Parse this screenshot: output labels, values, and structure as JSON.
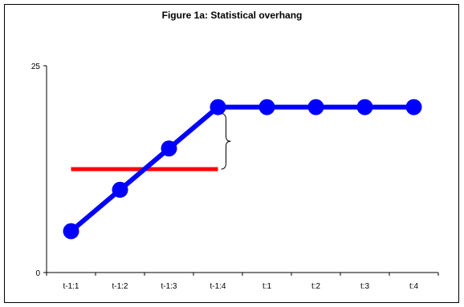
{
  "chart_data": {
    "type": "line",
    "title": "Figure 1a: Statistical overhang",
    "xlabel": "",
    "ylabel": "",
    "categories": [
      "t-1:1",
      "t-1:2",
      "t-1:3",
      "t-1:4",
      "t:1",
      "t:2",
      "t:3",
      "t:4"
    ],
    "ylim": [
      0,
      25
    ],
    "y_ticks": [
      0,
      25
    ],
    "grid": false,
    "legend": "none",
    "series": [
      {
        "color": "#0000ff",
        "marker": "circle",
        "values": [
          5,
          10,
          15,
          20,
          20,
          20,
          20,
          20
        ]
      },
      {
        "color": "#ff0000",
        "marker": "none",
        "x_range": [
          "t-1:1",
          "t-1:4"
        ],
        "value": 12.5
      }
    ],
    "annotations": [
      {
        "type": "brace",
        "at": "t-1:4",
        "from": 12.5,
        "to": 20
      }
    ]
  }
}
